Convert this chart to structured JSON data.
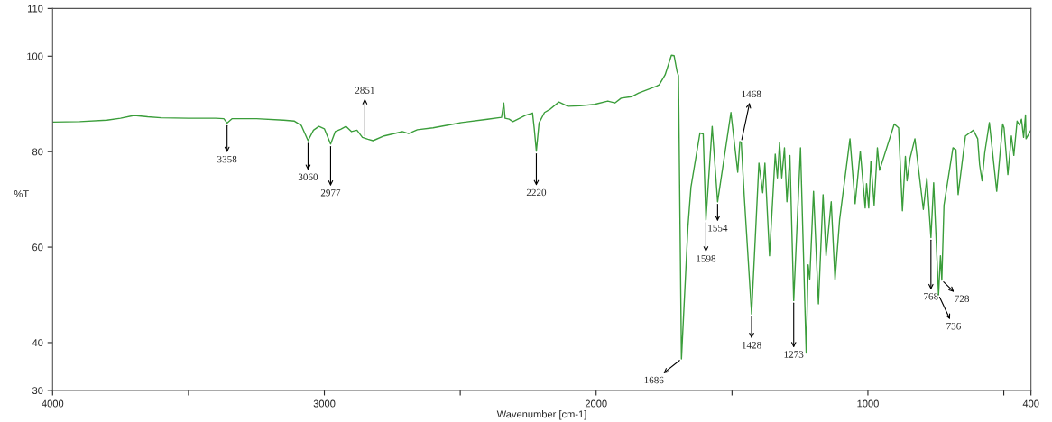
{
  "chart_data": {
    "type": "line",
    "xlabel": "Wavenumber [cm-1]",
    "ylabel": "%T",
    "xlim": [
      4000,
      400
    ],
    "xticks": [
      4000,
      {
        "value": 3500,
        "label": null
      },
      3000,
      {
        "value": 2500,
        "label": null
      },
      2000,
      {
        "value": 1500,
        "label": null
      },
      1000,
      {
        "value": 500,
        "label": null
      },
      400
    ],
    "ylim": [
      30,
      110
    ],
    "yticks": [
      30,
      40,
      60,
      80,
      100,
      110
    ],
    "grid": false,
    "marker": "none",
    "line_style": "solid",
    "series": [
      {
        "color": "#3a9d3a",
        "x": [
          4000,
          3900,
          3800,
          3750,
          3700,
          3650,
          3600,
          3500,
          3400,
          3370,
          3358,
          3340,
          3250,
          3150,
          3110,
          3085,
          3060,
          3040,
          3020,
          3000,
          2977,
          2960,
          2940,
          2920,
          2900,
          2880,
          2860,
          2840,
          2821,
          2780,
          2713,
          2690,
          2658,
          2600,
          2495,
          2400,
          2348,
          2340,
          2335,
          2320,
          2306,
          2260,
          2234,
          2228,
          2220,
          2210,
          2190,
          2169,
          2137,
          2104,
          2060,
          2006,
          1957,
          1931,
          1908,
          1870,
          1843,
          1778,
          1768,
          1746,
          1723,
          1713,
          1703,
          1697,
          1686,
          1662,
          1651,
          1618,
          1606,
          1596,
          1573,
          1553,
          1504,
          1479,
          1471,
          1466,
          1455,
          1428,
          1401,
          1387,
          1379,
          1362,
          1341,
          1333,
          1325,
          1317,
          1307,
          1298,
          1287,
          1273,
          1248,
          1227,
          1220,
          1214,
          1200,
          1182,
          1165,
          1154,
          1135,
          1121,
          1104,
          1066,
          1047,
          1028,
          1010,
          1005,
          997,
          989,
          977,
          965,
          957,
          903,
          887,
          873,
          862,
          856,
          845,
          827,
          796,
          783,
          768,
          758,
          740,
          733,
          728,
          720,
          687,
          676,
          668,
          641,
          612,
          596,
          589,
          580,
          570,
          553,
          526,
          504,
          499,
          485,
          472,
          463,
          451,
          442,
          435,
          427,
          420,
          418,
          400
        ],
        "values": [
          86.2,
          86.3,
          86.6,
          87.0,
          87.6,
          87.3,
          87.1,
          87.0,
          87.0,
          86.9,
          86.0,
          86.9,
          86.9,
          86.6,
          86.4,
          85.5,
          82.3,
          84.5,
          85.3,
          84.8,
          81.6,
          84.2,
          84.7,
          85.3,
          84.2,
          84.5,
          83.0,
          82.6,
          82.3,
          83.3,
          84.2,
          83.8,
          84.6,
          85.0,
          86.1,
          86.8,
          87.2,
          90.2,
          87.0,
          86.8,
          86.3,
          87.6,
          88.1,
          85.0,
          80.1,
          86.0,
          88.2,
          88.9,
          90.4,
          89.5,
          89.6,
          89.9,
          90.6,
          90.2,
          91.2,
          91.5,
          92.3,
          93.7,
          94.0,
          96.1,
          100.2,
          100.1,
          97.0,
          95.9,
          36.6,
          64.4,
          72.6,
          83.9,
          83.7,
          65.7,
          85.3,
          69.5,
          88.2,
          75.7,
          82.1,
          82.0,
          70.7,
          46.0,
          77.6,
          71.4,
          77.6,
          58.2,
          79.5,
          74.5,
          81.9,
          74.5,
          80.8,
          69.5,
          79.2,
          48.8,
          80.8,
          37.8,
          56.3,
          53.3,
          71.7,
          48.1,
          71.0,
          58.2,
          69.5,
          53.1,
          65.8,
          82.7,
          69.1,
          80.1,
          68.2,
          73.3,
          68.2,
          78.0,
          68.8,
          80.8,
          76.1,
          85.8,
          85.0,
          67.6,
          79.0,
          73.9,
          78.6,
          82.7,
          67.9,
          74.5,
          62.0,
          73.5,
          50.0,
          58.2,
          53.1,
          68.8,
          80.8,
          80.4,
          71.0,
          83.3,
          84.5,
          82.7,
          77.3,
          73.9,
          79.8,
          86.1,
          71.7,
          85.8,
          85.0,
          75.2,
          83.3,
          79.2,
          86.4,
          85.6,
          86.8,
          83.0,
          87.7,
          82.7,
          84.5
        ]
      }
    ],
    "annotations": [
      {
        "text": "3358",
        "x": 3358,
        "y": 86.0
      },
      {
        "text": "3060",
        "x": 3060,
        "y": 82.3
      },
      {
        "text": "2977",
        "x": 2977,
        "y": 81.6
      },
      {
        "text": "2851",
        "x": 2851,
        "y": 82.8
      },
      {
        "text": "2220",
        "x": 2220,
        "y": 80.1
      },
      {
        "text": "1686",
        "x": 1686,
        "y": 36.6
      },
      {
        "text": "1598",
        "x": 1596,
        "y": 65.7
      },
      {
        "text": "1554",
        "x": 1553,
        "y": 69.5
      },
      {
        "text": "1468",
        "x": 1466,
        "y": 82.0
      },
      {
        "text": "1428",
        "x": 1428,
        "y": 46.0
      },
      {
        "text": "1273",
        "x": 1273,
        "y": 48.8
      },
      {
        "text": "768",
        "x": 768,
        "y": 62.0
      },
      {
        "text": "736",
        "x": 740,
        "y": 50.0
      },
      {
        "text": "728",
        "x": 728,
        "y": 53.1
      }
    ]
  }
}
